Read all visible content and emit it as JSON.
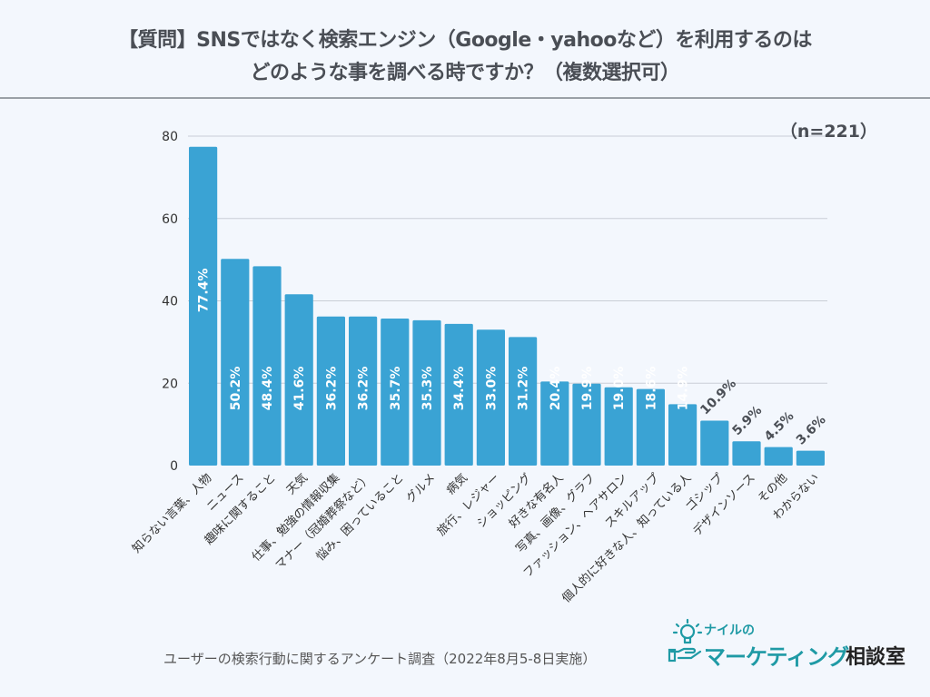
{
  "header": {
    "title_line1": "【質問】SNSではなく検索エンジン（Google・yahooなど）を利用するのは",
    "title_line2": "どのような事を調べる時ですか？（複数選択可）"
  },
  "sample_size": "（n=221）",
  "source_note": "ユーザーの検索行動に関するアンケート調査（2022年8月5-8日実施）",
  "logo": {
    "top": "ナイルの",
    "main": "マーケティング",
    "sub": "相談室"
  },
  "colors": {
    "bar": "#3aa3d4",
    "grid": "#c9ced6",
    "label_inside": "#ffffff",
    "label_outside": "#4a4e55",
    "logo": "#1f9aa5"
  },
  "chart_data": {
    "type": "bar",
    "title": "【質問】SNSではなく検索エンジン（Google・yahooなど）を利用するのはどのような事を調べる時ですか？（複数選択可）",
    "xlabel": "",
    "ylabel": "",
    "ylim": [
      0,
      80
    ],
    "yticks": [
      0,
      20,
      40,
      60,
      80
    ],
    "grid": true,
    "legend": "none",
    "categories": [
      "知らない言葉、人物",
      "ニュース",
      "趣味に関すること",
      "天気",
      "仕事、勉強の情報収集",
      "マナー（冠婚葬祭など）",
      "悩み、困っていること",
      "グルメ",
      "病気",
      "旅行、レジャー",
      "ショッピング",
      "好きな有名人",
      "写真、画像、グラフ",
      "ファッション、ヘアサロン",
      "スキルアップ",
      "個人的に好きな人、知っている人",
      "ゴシップ",
      "デザインソース",
      "その他",
      "わからない"
    ],
    "values": [
      77.4,
      50.2,
      48.4,
      41.6,
      36.2,
      36.2,
      35.7,
      35.3,
      34.4,
      33.0,
      31.2,
      20.4,
      19.9,
      19.0,
      18.6,
      14.9,
      10.9,
      5.9,
      4.5,
      3.6
    ],
    "value_labels": [
      "77.4%",
      "50.2%",
      "48.4%",
      "41.6%",
      "36.2%",
      "36.2%",
      "35.7%",
      "35.3%",
      "34.4%",
      "33.0%",
      "31.2%",
      "20.4%",
      "19.9%",
      "19.0%",
      "18.6%",
      "14.9%",
      "10.9%",
      "5.9%",
      "4.5%",
      "3.6%"
    ],
    "annotations": [
      "（n=221）"
    ]
  }
}
